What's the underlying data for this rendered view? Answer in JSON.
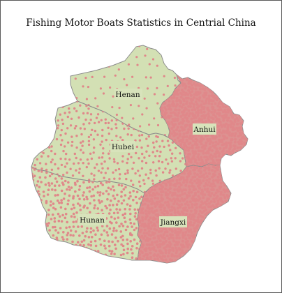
{
  "map": {
    "title": "Fishing Motor Boats Statistics in Centrial China",
    "colors": {
      "land": "#d3e0b4",
      "border": "#8c8c8c",
      "dot": "#e0888a",
      "dense_fill": "#dd9291"
    },
    "dot_density_note": "one dot per unit of fishing motor boats",
    "provinces": [
      {
        "id": "henan",
        "label": "Henan",
        "density": "low"
      },
      {
        "id": "anhui",
        "label": "Anhui",
        "density": "very-high"
      },
      {
        "id": "hubei",
        "label": "Hubei",
        "density": "medium"
      },
      {
        "id": "hunan",
        "label": "Hunan",
        "density": "high"
      },
      {
        "id": "jiangxi",
        "label": "Jiangxi",
        "density": "very-high"
      }
    ]
  }
}
